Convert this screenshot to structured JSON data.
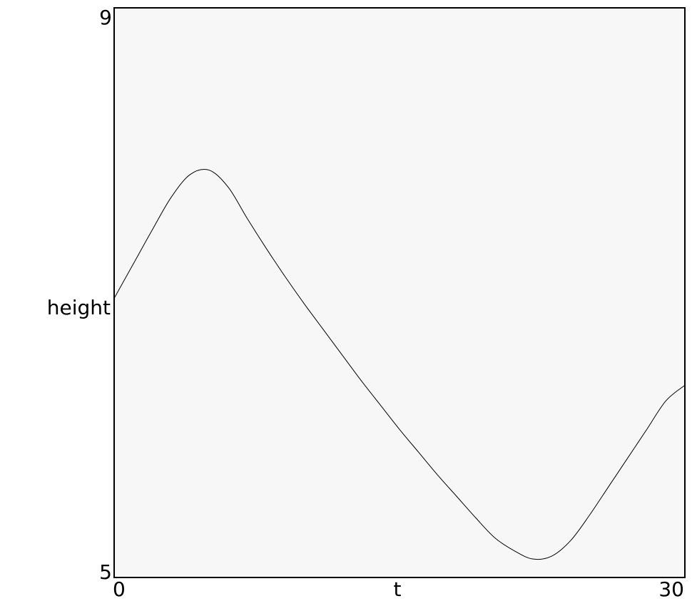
{
  "chart_data": {
    "type": "line",
    "title": "",
    "xlabel": "t",
    "ylabel": "height",
    "xlim": [
      0,
      30
    ],
    "ylim": [
      5,
      9
    ],
    "x_tick_labels": [
      "0",
      "30"
    ],
    "y_tick_labels": [
      "9",
      "5"
    ],
    "grid": false,
    "series": [
      {
        "name": "height",
        "x": [
          0,
          1,
          2,
          3,
          4,
          5,
          6,
          7,
          8,
          9,
          10,
          11,
          12,
          13,
          14,
          15,
          16,
          17,
          18,
          19,
          20,
          21,
          22,
          23,
          24,
          25,
          26,
          27,
          28,
          29,
          30
        ],
        "y": [
          6.96,
          7.2,
          7.44,
          7.67,
          7.83,
          7.86,
          7.74,
          7.52,
          7.31,
          7.11,
          6.92,
          6.74,
          6.56,
          6.38,
          6.21,
          6.04,
          5.88,
          5.72,
          5.57,
          5.42,
          5.28,
          5.19,
          5.13,
          5.15,
          5.26,
          5.44,
          5.64,
          5.84,
          6.04,
          6.24,
          6.35
        ]
      }
    ],
    "colors": {
      "background": "#f7f7f7",
      "line": "#000000",
      "frame": "#000000"
    }
  }
}
